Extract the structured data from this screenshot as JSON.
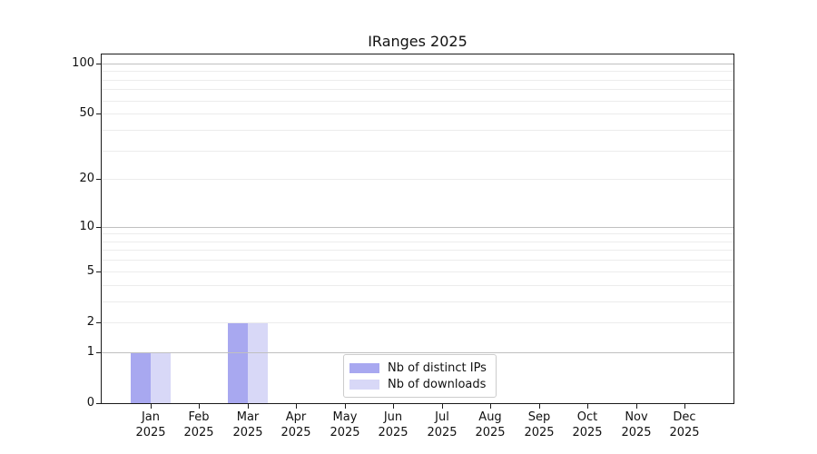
{
  "chart_data": {
    "type": "bar",
    "title": "IRanges 2025",
    "x_ticks": [
      {
        "month": "Jan",
        "year": "2025"
      },
      {
        "month": "Feb",
        "year": "2025"
      },
      {
        "month": "Mar",
        "year": "2025"
      },
      {
        "month": "Apr",
        "year": "2025"
      },
      {
        "month": "May",
        "year": "2025"
      },
      {
        "month": "Jun",
        "year": "2025"
      },
      {
        "month": "Jul",
        "year": "2025"
      },
      {
        "month": "Aug",
        "year": "2025"
      },
      {
        "month": "Sep",
        "year": "2025"
      },
      {
        "month": "Oct",
        "year": "2025"
      },
      {
        "month": "Nov",
        "year": "2025"
      },
      {
        "month": "Dec",
        "year": "2025"
      }
    ],
    "series": [
      {
        "name": "Nb of distinct IPs",
        "color": "#a8a8f0",
        "values": [
          1,
          0,
          2,
          0,
          0,
          0,
          0,
          0,
          0,
          0,
          0,
          0
        ]
      },
      {
        "name": "Nb of downloads",
        "color": "#d8d8f7",
        "values": [
          1,
          0,
          2,
          0,
          0,
          0,
          0,
          0,
          0,
          0,
          0,
          0
        ]
      }
    ],
    "y_scale": "log10(1+x)",
    "ylim": [
      0,
      113
    ],
    "y_ticks": [
      0,
      1,
      2,
      5,
      10,
      20,
      50,
      100
    ],
    "y_major_gridlines": [
      1,
      10,
      100
    ],
    "y_minor_gridlines": [
      2,
      3,
      4,
      5,
      6,
      7,
      8,
      9,
      20,
      30,
      40,
      50,
      60,
      70,
      80,
      90
    ],
    "grid": true,
    "legend_position": "lower center",
    "colors": {
      "major_gridline": "#c0c0c0",
      "minor_gridline": "#ececec",
      "spine": "#1a1a1a",
      "text": "#111111"
    }
  }
}
